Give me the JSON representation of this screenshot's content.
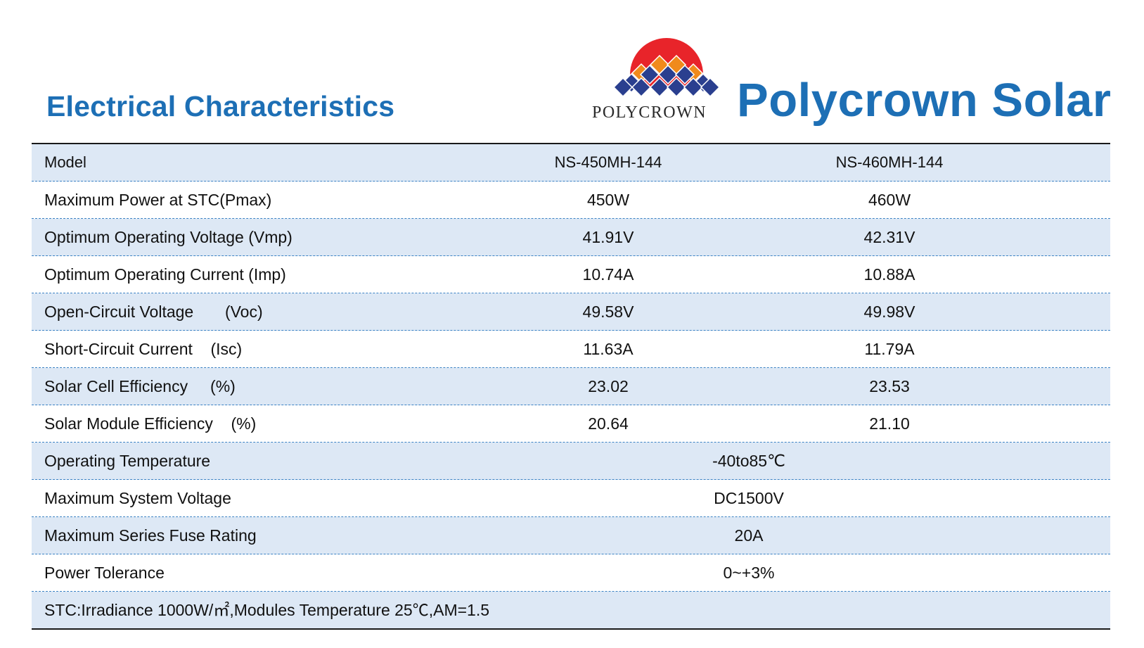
{
  "page_title": "Electrical Characteristics",
  "brand": {
    "wordmark": "POLYCROWN",
    "title": "Polycrown Solar"
  },
  "colors": {
    "accent_blue": "#1d6fb5",
    "row_shade": "#dde8f5",
    "logo_red": "#e8242a",
    "logo_orange": "#f08a1c",
    "logo_navy": "#2a3f8f"
  },
  "table": {
    "header": {
      "label": "Model",
      "col1": "NS-450MH-144",
      "col2": "NS-460MH-144"
    },
    "rows": [
      {
        "label": "Maximum Power at STC(Pmax)",
        "col1": "450W",
        "col2": "460W"
      },
      {
        "label": "Optimum Operating Voltage (Vmp)",
        "col1": "41.91V",
        "col2": "42.31V"
      },
      {
        "label": "Optimum Operating Current (Imp)",
        "col1": "10.74A",
        "col2": "10.88A"
      },
      {
        "label": "Open-Circuit Voltage       (Voc)",
        "col1": "49.58V",
        "col2": "49.98V"
      },
      {
        "label": "Short-Circuit Current    (Isc)",
        "col1": "11.63A",
        "col2": "11.79A"
      },
      {
        "label": "Solar Cell Efficiency     (%)",
        "col1": "23.02",
        "col2": "23.53"
      },
      {
        "label": "Solar Module Efficiency    (%)",
        "col1": "20.64",
        "col2": "21.10"
      }
    ],
    "merged_rows": [
      {
        "label": "Operating Temperature",
        "value": "-40to85℃"
      },
      {
        "label": "Maximum System Voltage",
        "value": "DC1500V"
      },
      {
        "label": "Maximum Series Fuse Rating",
        "value": "20A"
      },
      {
        "label": "Power Tolerance",
        "value": "0~+3%"
      }
    ],
    "footnote": "STC:Irradiance 1000W/㎡,Modules Temperature 25℃,AM=1.5"
  }
}
